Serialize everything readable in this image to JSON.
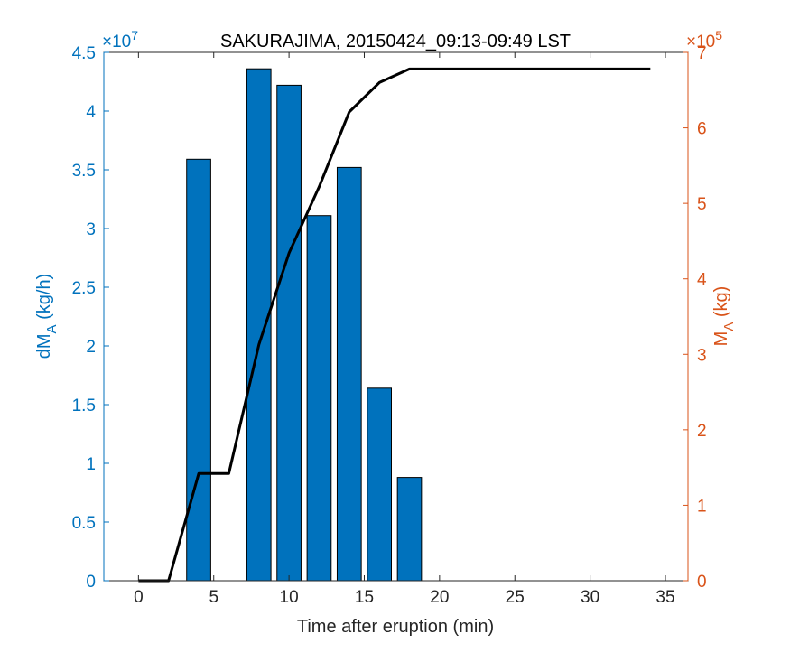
{
  "colors": {
    "left_axis": "#0072BD",
    "right_axis": "#D95319",
    "bars_fill": "#0072BD",
    "bars_edge": "#000000",
    "line": "#000000",
    "axis_box": "#262626",
    "text": "#262626"
  },
  "chart_data": {
    "type": "bar",
    "title": "SAKURAJIMA, 20150424_09:13-09:49 LST",
    "xlabel": "Time after eruption (min)",
    "ylabel_left": {
      "main": "dM",
      "sub": "A",
      "unit": " (kg/h)"
    },
    "ylabel_right": {
      "main": "M",
      "sub": "A",
      "unit": " (kg)"
    },
    "xlim": [
      -2.3,
      36.5
    ],
    "xticks": [
      0,
      5,
      10,
      15,
      20,
      25,
      30,
      35
    ],
    "xtick_labels": [
      "0",
      "5",
      "10",
      "15",
      "20",
      "25",
      "30",
      "35"
    ],
    "ylim_left": [
      0,
      4.5
    ],
    "yticks_left": [
      0,
      0.5,
      1,
      1.5,
      2,
      2.5,
      3,
      3.5,
      4,
      4.5
    ],
    "ytick_labels_left": [
      "0",
      "0.5",
      "1",
      "1.5",
      "2",
      "2.5",
      "3",
      "3.5",
      "4",
      "4.5"
    ],
    "exponent_left": {
      "base": "×10",
      "power": "7"
    },
    "ylim_right": [
      0,
      7
    ],
    "yticks_right": [
      0,
      1,
      2,
      3,
      4,
      5,
      6,
      7
    ],
    "ytick_labels_right": [
      "0",
      "1",
      "2",
      "3",
      "4",
      "5",
      "6",
      "7"
    ],
    "exponent_right": {
      "base": "×10",
      "power": "5"
    },
    "bar_width": 1.6,
    "bars": {
      "x": [
        4,
        8,
        10,
        12,
        14,
        16,
        18
      ],
      "values": [
        3.59,
        4.36,
        4.22,
        3.11,
        3.52,
        1.64,
        0.88
      ]
    },
    "line": {
      "x": [
        0,
        2,
        4,
        6,
        8,
        10,
        12,
        14,
        16,
        18,
        20,
        34
      ],
      "values": [
        0,
        0,
        1.42,
        1.42,
        3.13,
        4.34,
        5.22,
        6.21,
        6.6,
        6.78,
        6.78,
        6.78
      ]
    },
    "grid": false,
    "legend": "none"
  }
}
